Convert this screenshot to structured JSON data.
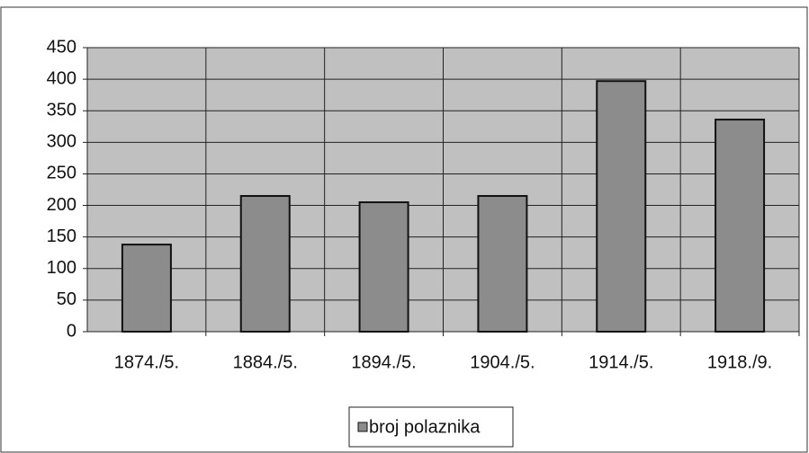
{
  "chart_data": {
    "type": "bar",
    "categories": [
      "1874./5.",
      "1884./5.",
      "1894./5.",
      "1904./5.",
      "1914./5.",
      "1918./9."
    ],
    "series": [
      {
        "name": "broj polaznika",
        "color": "#8c8c8c",
        "values": [
          138,
          215,
          205,
          215,
          397,
          336
        ]
      }
    ],
    "ylim": [
      0,
      450
    ],
    "yticks": [
      0,
      50,
      100,
      150,
      200,
      250,
      300,
      350,
      400,
      450
    ],
    "grid": true,
    "legend": "bottom"
  }
}
